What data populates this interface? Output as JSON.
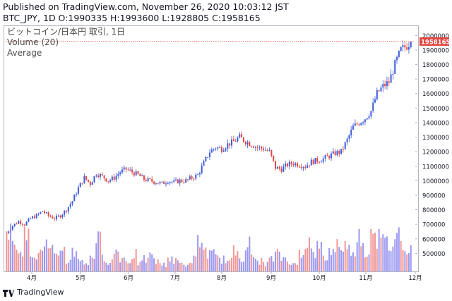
{
  "header": {
    "published": "Published on TradingView.com, November 26, 2020 10:03:12 JST",
    "ohlc": "BTC_JPY, 1D O:1990335 H:1993600 L:1928805 C:1958165"
  },
  "legend": {
    "symbol": "ビットコイン/日本円 取引, 1日",
    "volume": "Volume (20)",
    "average": "Average"
  },
  "footer": {
    "brand": "TradingView"
  },
  "colors": {
    "up": "#3b5bdb",
    "down": "#e0463f",
    "vol_up": "#8f8cf0",
    "vol_down": "#f08a8a",
    "last": "#e0463f"
  },
  "chart_data": {
    "type": "candlestick",
    "x_tick_labels": [
      "4月",
      "5月",
      "6月",
      "7月",
      "8月",
      "9月",
      "10月",
      "11月",
      "12月"
    ],
    "y_tick_labels": [
      "500000",
      "600000",
      "700000",
      "800000",
      "900000",
      "1000000",
      "1100000",
      "1200000",
      "1300000",
      "1400000",
      "1500000",
      "1600000",
      "1700000",
      "1800000",
      "1900000",
      "2000000"
    ],
    "ylim": [
      400000,
      2050000
    ],
    "last_price_label": "1958165",
    "close_path": [
      [
        0,
        640000
      ],
      [
        3,
        690000
      ],
      [
        6,
        720000
      ],
      [
        9,
        700000
      ],
      [
        12,
        740000
      ],
      [
        15,
        760000
      ],
      [
        18,
        790000
      ],
      [
        21,
        760000
      ],
      [
        24,
        740000
      ],
      [
        27,
        760000
      ],
      [
        30,
        800000
      ],
      [
        33,
        860000
      ],
      [
        36,
        950000
      ],
      [
        39,
        1020000
      ],
      [
        42,
        980000
      ],
      [
        45,
        1050000
      ],
      [
        48,
        1030000
      ],
      [
        51,
        1000000
      ],
      [
        54,
        1020000
      ],
      [
        57,
        1060000
      ],
      [
        60,
        1080000
      ],
      [
        63,
        1060000
      ],
      [
        66,
        1040000
      ],
      [
        69,
        1010000
      ],
      [
        72,
        1000000
      ],
      [
        75,
        990000
      ],
      [
        78,
        980000
      ],
      [
        81,
        1000000
      ],
      [
        84,
        990000
      ],
      [
        87,
        1000000
      ],
      [
        90,
        1000000
      ],
      [
        93,
        1020000
      ],
      [
        96,
        1040000
      ],
      [
        99,
        1120000
      ],
      [
        102,
        1200000
      ],
      [
        105,
        1230000
      ],
      [
        108,
        1220000
      ],
      [
        111,
        1250000
      ],
      [
        114,
        1270000
      ],
      [
        117,
        1300000
      ],
      [
        120,
        1270000
      ],
      [
        123,
        1250000
      ],
      [
        126,
        1230000
      ],
      [
        129,
        1220000
      ],
      [
        132,
        1200000
      ],
      [
        135,
        1090000
      ],
      [
        138,
        1080000
      ],
      [
        141,
        1110000
      ],
      [
        144,
        1120000
      ],
      [
        147,
        1110000
      ],
      [
        150,
        1100000
      ],
      [
        153,
        1130000
      ],
      [
        156,
        1140000
      ],
      [
        159,
        1150000
      ],
      [
        162,
        1170000
      ],
      [
        165,
        1190000
      ],
      [
        168,
        1200000
      ],
      [
        171,
        1280000
      ],
      [
        174,
        1370000
      ],
      [
        177,
        1400000
      ],
      [
        180,
        1430000
      ],
      [
        183,
        1480000
      ],
      [
        186,
        1600000
      ],
      [
        189,
        1650000
      ],
      [
        192,
        1680000
      ],
      [
        195,
        1800000
      ],
      [
        198,
        1900000
      ],
      [
        201,
        1930000
      ],
      [
        203,
        1958165
      ]
    ],
    "volume_levels": [
      0.55,
      0.45,
      0.35,
      0.5,
      0.3,
      0.25,
      0.4,
      0.3,
      0.2,
      0.35,
      0.15,
      0.3,
      0.2,
      0.1,
      0.25,
      0.45,
      0.2,
      0.15,
      0.3,
      0.2,
      0.15,
      0.25,
      0.12,
      0.18,
      0.22,
      0.14,
      0.1,
      0.2,
      0.15,
      0.12,
      0.1,
      0.18,
      0.45,
      0.3,
      0.25,
      0.2,
      0.18,
      0.15,
      0.3,
      0.22,
      0.4,
      0.2,
      0.15,
      0.12,
      0.18,
      0.25,
      0.2,
      0.15,
      0.1,
      0.3,
      0.45,
      0.28,
      0.35,
      0.2,
      0.3,
      0.4,
      0.38,
      0.32,
      0.35,
      0.55,
      0.25,
      0.75,
      0.5,
      0.42,
      0.38
    ]
  }
}
